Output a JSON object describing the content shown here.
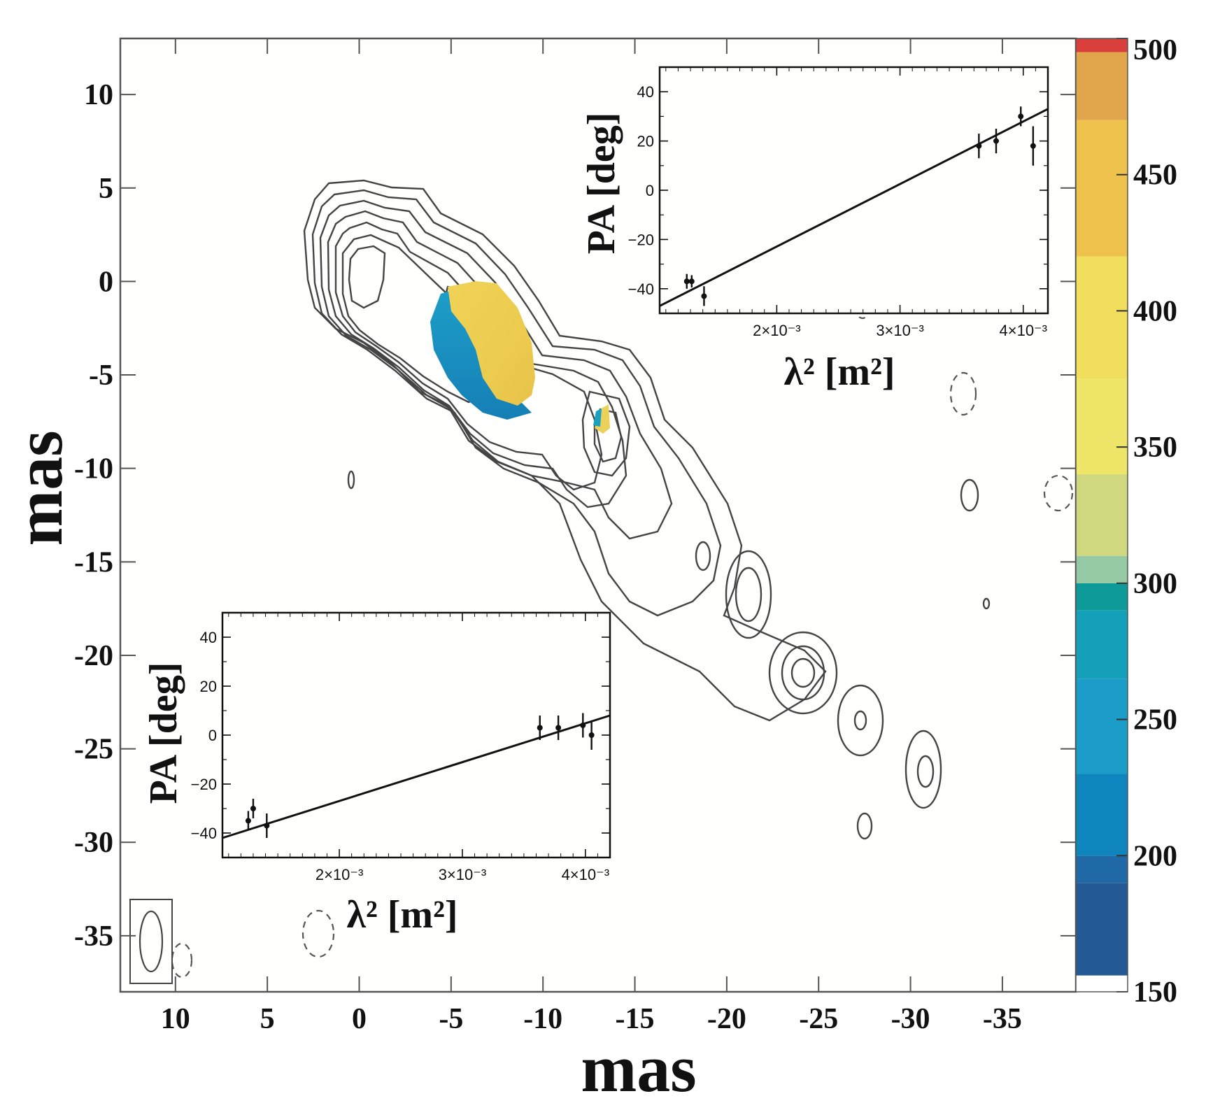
{
  "chart_data": [
    {
      "type": "contour_map",
      "xlabel": "mas",
      "ylabel": "mas",
      "xlim": [
        13,
        -39
      ],
      "ylim": [
        -38,
        13
      ],
      "xticks": [
        10,
        5,
        0,
        -5,
        -10,
        -15,
        -20,
        -25,
        -30,
        -35
      ],
      "xtick_labels": [
        "10",
        "5",
        "0",
        "-5",
        "-10",
        "-15",
        "-20",
        "-25",
        "-30",
        "-35"
      ],
      "yticks": [
        10,
        5,
        0,
        -5,
        -10,
        -15,
        -20,
        -25,
        -30,
        -35
      ],
      "ytick_labels": [
        "10",
        "5",
        "0",
        "-5",
        "-10",
        "-15",
        "-20",
        "-25",
        "-30",
        "-35"
      ],
      "colorbar": {
        "range": [
          150,
          500
        ],
        "ticks": [
          500,
          450,
          400,
          350,
          300,
          250,
          200,
          150
        ],
        "tick_labels": [
          "500",
          "450",
          "400",
          "350",
          "300",
          "250",
          "200",
          "150"
        ],
        "colors": [
          "#ffffff",
          "#245a94",
          "#1f6aa6",
          "#0e86bd",
          "#1c9cc8",
          "#14a0b8",
          "#0f9a9a",
          "#95c9a5",
          "#cfd87e",
          "#efe568",
          "#f1de5c",
          "#eec24c",
          "#e1a64c",
          "#d9403b"
        ],
        "color_stops": [
          150,
          156,
          190,
          200,
          230,
          265,
          290,
          300,
          310,
          340,
          375,
          420,
          470,
          495
        ]
      }
    },
    {
      "type": "scatter",
      "title": "upper inset",
      "xlabel": "λ² [m²]",
      "ylabel": "PA [deg]",
      "xlim": [
        0.00105,
        0.0042
      ],
      "ylim": [
        -50,
        50
      ],
      "xticks": [
        0.002,
        0.003,
        0.004
      ],
      "xtick_labels": [
        "2×10⁻³",
        "3×10⁻³",
        "4×10⁻³"
      ],
      "yticks": [
        40,
        20,
        0,
        -20,
        -40
      ],
      "ytick_labels": [
        "40",
        "20",
        "0",
        "−20",
        "−40"
      ],
      "points": [
        {
          "x": 0.00127,
          "y": -37,
          "err": 3
        },
        {
          "x": 0.00131,
          "y": -37,
          "err": 2.5
        },
        {
          "x": 0.00141,
          "y": -43,
          "err": 4
        },
        {
          "x": 0.00364,
          "y": 18,
          "err": 5
        },
        {
          "x": 0.00378,
          "y": 20,
          "err": 5
        },
        {
          "x": 0.00398,
          "y": 30,
          "err": 4
        },
        {
          "x": 0.00408,
          "y": 18,
          "err": 8
        }
      ],
      "fit": {
        "x": [
          0.00105,
          0.0042
        ],
        "y": [
          -47,
          33
        ]
      }
    },
    {
      "type": "scatter",
      "title": "lower inset",
      "xlabel": "λ² [m²]",
      "ylabel": "PA [deg]",
      "xlim": [
        0.00105,
        0.0042
      ],
      "ylim": [
        -50,
        50
      ],
      "xticks": [
        0.002,
        0.003,
        0.004
      ],
      "xtick_labels": [
        "2×10⁻³",
        "3×10⁻³",
        "4×10⁻³"
      ],
      "yticks": [
        40,
        20,
        0,
        -20,
        -40
      ],
      "ytick_labels": [
        "40",
        "20",
        "0",
        "−20",
        "−40"
      ],
      "points": [
        {
          "x": 0.00126,
          "y": -35,
          "err": 4
        },
        {
          "x": 0.0013,
          "y": -30,
          "err": 4
        },
        {
          "x": 0.00141,
          "y": -37,
          "err": 5
        },
        {
          "x": 0.00363,
          "y": 3,
          "err": 5
        },
        {
          "x": 0.00378,
          "y": 3,
          "err": 5
        },
        {
          "x": 0.00398,
          "y": 4,
          "err": 5
        },
        {
          "x": 0.00405,
          "y": 0,
          "err": 6
        }
      ],
      "fit": {
        "x": [
          0.00105,
          0.0042
        ],
        "y": [
          -42,
          8
        ]
      }
    }
  ]
}
